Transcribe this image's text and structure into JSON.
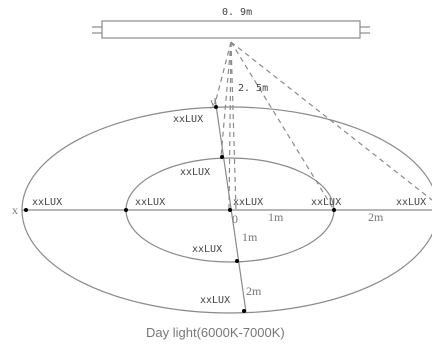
{
  "lamp": {
    "width_label": "0. 9m"
  },
  "height_label": "2. 5m",
  "axis": {
    "x_label": "x",
    "y_label": "y"
  },
  "lux_label": "xxLUX",
  "distances": {
    "zero": "0",
    "r1": "1m",
    "r2": "2m"
  },
  "caption": "Day light(6000K-7000K)"
}
